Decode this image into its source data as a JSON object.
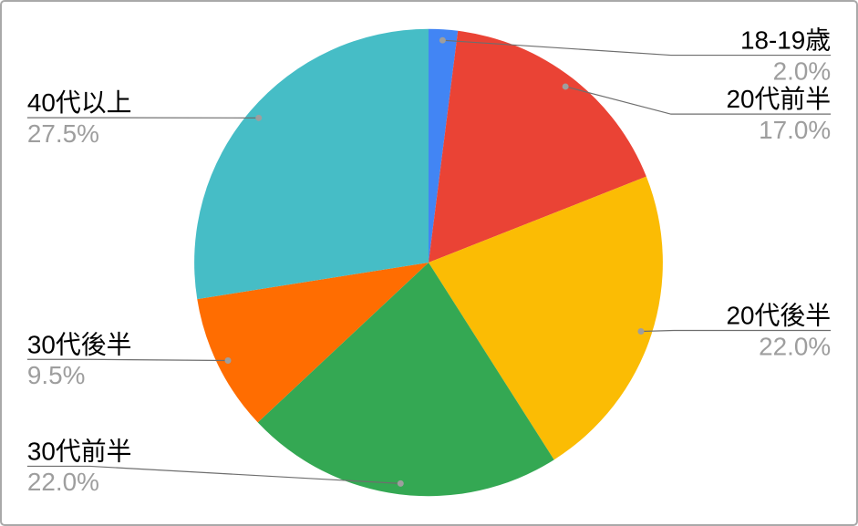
{
  "window": {
    "background_color": "#ffffff",
    "border_color": "#a9a9a9"
  },
  "chart_data": {
    "type": "pie",
    "title": "",
    "direction": "clockwise",
    "start_angle_deg": 0,
    "total": 100,
    "unit": "%",
    "legend_position": "outside-callout-labels",
    "slices": [
      {
        "label": "18-19歳",
        "value": 2.0,
        "pct_label": "2.0%",
        "color": "#4285F4"
      },
      {
        "label": "20代前半",
        "value": 17.0,
        "pct_label": "17.0%",
        "color": "#EA4335"
      },
      {
        "label": "20代後半",
        "value": 22.0,
        "pct_label": "22.0%",
        "color": "#FBBC04"
      },
      {
        "label": "30代前半",
        "value": 22.0,
        "pct_label": "22.0%",
        "color": "#34A853"
      },
      {
        "label": "30代後半",
        "value": 9.5,
        "pct_label": "9.5%",
        "color": "#FF6D01"
      },
      {
        "label": "40代以上",
        "value": 27.5,
        "pct_label": "27.5%",
        "color": "#46BDC6"
      }
    ],
    "label_style": {
      "name_color": "#000000",
      "pct_color": "#9e9e9e",
      "leader_line_color": "#6e6e6e",
      "leader_dot_color": "#9e9e9e"
    }
  }
}
